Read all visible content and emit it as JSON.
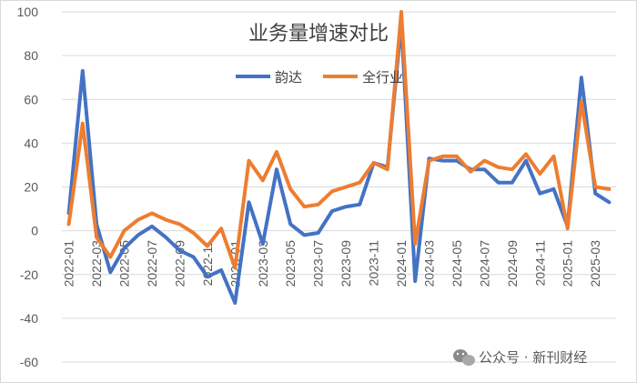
{
  "chart_data": {
    "type": "line",
    "title": "业务量增速对比",
    "xlabel": "",
    "ylabel": "",
    "ylim": [
      -60,
      100
    ],
    "yticks": [
      -60,
      -40,
      -20,
      0,
      20,
      40,
      60,
      80,
      100
    ],
    "grid": "horizontal",
    "legend_position": "top",
    "x": [
      "2022-01",
      "2022-02",
      "2022-03",
      "2022-04",
      "2022-05",
      "2022-06",
      "2022-07",
      "2022-08",
      "2022-09",
      "2022-10",
      "2022-11",
      "2022-12",
      "2023-01",
      "2023-02",
      "2023-03",
      "2023-04",
      "2023-05",
      "2023-06",
      "2023-07",
      "2023-08",
      "2023-09",
      "2023-10",
      "2023-11",
      "2023-12",
      "2024-01",
      "2024-02",
      "2024-03",
      "2024-04",
      "2024-05",
      "2024-06",
      "2024-07",
      "2024-08",
      "2024-09",
      "2024-10",
      "2024-11",
      "2024-12",
      "2025-01",
      "2025-02",
      "2025-03",
      "2025-04"
    ],
    "x_tick_labels": [
      "2022-01",
      "2022-03",
      "2022-05",
      "2022-07",
      "2022-09",
      "2022-11",
      "2023-01",
      "2023-03",
      "2023-05",
      "2023-07",
      "2023-09",
      "2023-11",
      "2024-01",
      "2024-03",
      "2024-05",
      "2024-07",
      "2024-09",
      "2024-11",
      "2025-01",
      "2025-03"
    ],
    "series": [
      {
        "name": "韵达",
        "color": "#4472c4",
        "values": [
          8,
          73,
          3,
          -19,
          -8,
          -2,
          2,
          -3,
          -9,
          -12,
          -21,
          -18,
          -33,
          13,
          -6,
          28,
          3,
          -2,
          -1,
          9,
          11,
          12,
          31,
          29,
          95,
          -23,
          33,
          32,
          32,
          28,
          28,
          22,
          22,
          32,
          17,
          19,
          2,
          70,
          17,
          13
        ]
      },
      {
        "name": "全行业",
        "color": "#ed7d31",
        "values": [
          3,
          49,
          -3,
          -12,
          0,
          5,
          8,
          5,
          3,
          -1,
          -7,
          1,
          -17,
          32,
          23,
          36,
          19,
          11,
          12,
          18,
          20,
          22,
          31,
          28,
          100,
          -6,
          32,
          34,
          34,
          27,
          32,
          29,
          28,
          35,
          26,
          34,
          1,
          59,
          20,
          19
        ]
      }
    ]
  },
  "watermark": {
    "text": "公众号 · 新刊财经",
    "icon": "wechat-icon"
  }
}
